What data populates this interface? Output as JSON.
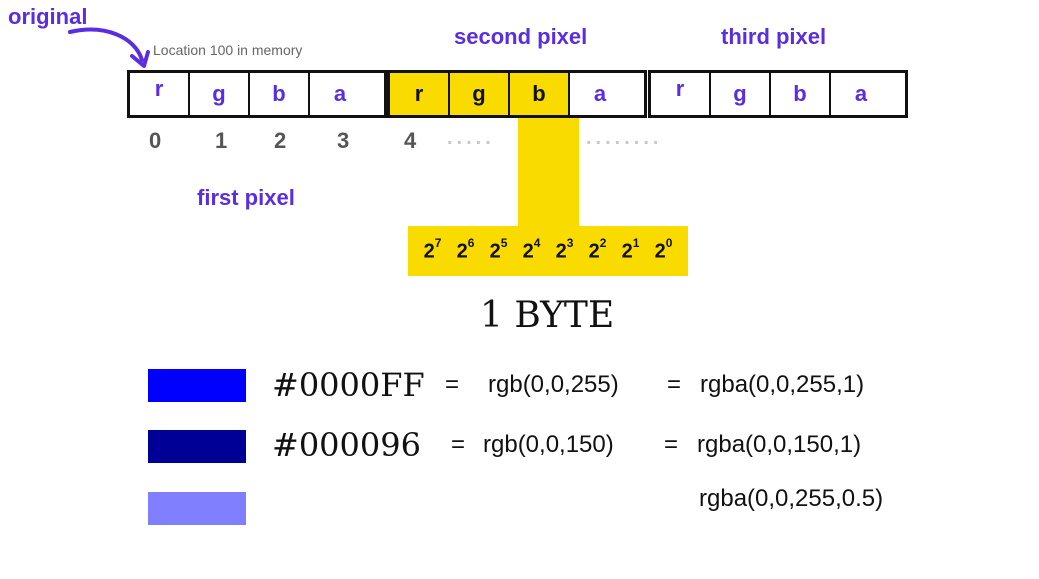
{
  "labels": {
    "original": "original",
    "location": "Location 100 in memory",
    "second_pixel": "second pixel",
    "third_pixel": "third pixel",
    "first_pixel": "first pixel",
    "byte": "1 BYTE"
  },
  "channels": [
    "r",
    "g",
    "b",
    "a"
  ],
  "indices": [
    "0",
    "1",
    "2",
    "3",
    "4"
  ],
  "dots_a": ".....",
  "dots_b": "........",
  "powers": [
    {
      "base": "2",
      "exp": "7"
    },
    {
      "base": "2",
      "exp": "6"
    },
    {
      "base": "2",
      "exp": "5"
    },
    {
      "base": "2",
      "exp": "4"
    },
    {
      "base": "2",
      "exp": "3"
    },
    {
      "base": "2",
      "exp": "2"
    },
    {
      "base": "2",
      "exp": "1"
    },
    {
      "base": "2",
      "exp": "0"
    }
  ],
  "colors": {
    "highlight": "#fadb00",
    "label": "#5a2ee0",
    "swatch_blue": "#0000ff",
    "swatch_dark_blue": "#000096",
    "swatch_half_blue": "#8080ff"
  },
  "rows": [
    {
      "hex": "#0000FF",
      "eq1": "=",
      "rgb": "rgb(0,0,255)",
      "eq2": "=",
      "rgba": "rgba(0,0,255,1)"
    },
    {
      "hex": "#000096",
      "eq1": "=",
      "rgb": "rgb(0,0,150)",
      "eq2": "=",
      "rgba": "rgba(0,0,150,1)"
    },
    {
      "hex": "",
      "eq1": "",
      "rgb": "",
      "eq2": "",
      "rgba": "rgba(0,0,255,0.5)"
    }
  ]
}
